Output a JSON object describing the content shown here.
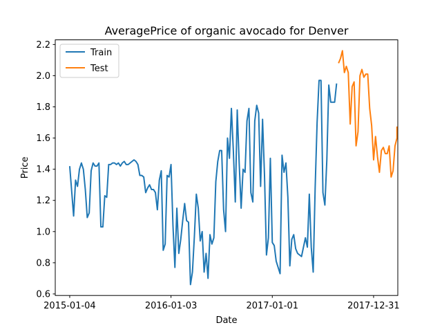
{
  "chart_data": {
    "type": "line",
    "title": "AveragePrice of organic avocado for Denver",
    "xlabel": "Date",
    "ylabel": "Price",
    "xlim": [
      "2014-11-13",
      "2018-03-28"
    ],
    "ylim": [
      0.59,
      2.23
    ],
    "grid": false,
    "legend_position": "top-left",
    "x_ticks": [
      "2015-01-04",
      "2016-01-03",
      "2017-01-01",
      "2017-12-31"
    ],
    "y_ticks": [
      0.6,
      0.8,
      1.0,
      1.2,
      1.4,
      1.6,
      1.8,
      2.0,
      2.2
    ],
    "y_tick_labels": [
      "0.6",
      "0.8",
      "1.0",
      "1.2",
      "1.4",
      "1.6",
      "1.8",
      "2.0",
      "2.2"
    ],
    "series": [
      {
        "name": "Train",
        "color": "#1f77b4",
        "points": [
          [
            "2015-01-04",
            1.42
          ],
          [
            "2015-01-11",
            1.26
          ],
          [
            "2015-01-18",
            1.1
          ],
          [
            "2015-01-25",
            1.33
          ],
          [
            "2015-02-01",
            1.29
          ],
          [
            "2015-02-08",
            1.4
          ],
          [
            "2015-02-15",
            1.44
          ],
          [
            "2015-02-22",
            1.4
          ],
          [
            "2015-03-01",
            1.27
          ],
          [
            "2015-03-08",
            1.09
          ],
          [
            "2015-03-15",
            1.12
          ],
          [
            "2015-03-22",
            1.39
          ],
          [
            "2015-03-29",
            1.44
          ],
          [
            "2015-04-05",
            1.42
          ],
          [
            "2015-04-12",
            1.42
          ],
          [
            "2015-04-19",
            1.44
          ],
          [
            "2015-04-26",
            1.03
          ],
          [
            "2015-05-03",
            1.03
          ],
          [
            "2015-05-10",
            1.23
          ],
          [
            "2015-05-17",
            1.22
          ],
          [
            "2015-05-24",
            1.43
          ],
          [
            "2015-05-31",
            1.43
          ],
          [
            "2015-06-07",
            1.44
          ],
          [
            "2015-06-14",
            1.44
          ],
          [
            "2015-06-21",
            1.43
          ],
          [
            "2015-06-28",
            1.44
          ],
          [
            "2015-07-05",
            1.42
          ],
          [
            "2015-07-12",
            1.44
          ],
          [
            "2015-07-19",
            1.45
          ],
          [
            "2015-07-26",
            1.43
          ],
          [
            "2015-08-02",
            1.43
          ],
          [
            "2015-08-09",
            1.44
          ],
          [
            "2015-08-16",
            1.45
          ],
          [
            "2015-08-23",
            1.46
          ],
          [
            "2015-08-30",
            1.45
          ],
          [
            "2015-09-06",
            1.43
          ],
          [
            "2015-09-13",
            1.36
          ],
          [
            "2015-09-20",
            1.36
          ],
          [
            "2015-09-27",
            1.35
          ],
          [
            "2015-10-04",
            1.25
          ],
          [
            "2015-10-11",
            1.28
          ],
          [
            "2015-10-18",
            1.3
          ],
          [
            "2015-10-25",
            1.27
          ],
          [
            "2015-11-01",
            1.27
          ],
          [
            "2015-11-08",
            1.25
          ],
          [
            "2015-11-15",
            1.14
          ],
          [
            "2015-11-22",
            1.33
          ],
          [
            "2015-11-29",
            1.39
          ],
          [
            "2015-12-06",
            0.88
          ],
          [
            "2015-12-13",
            0.92
          ],
          [
            "2015-12-20",
            1.36
          ],
          [
            "2015-12-27",
            1.35
          ],
          [
            "2016-01-03",
            1.43
          ],
          [
            "2016-01-10",
            1.04
          ],
          [
            "2016-01-17",
            0.77
          ],
          [
            "2016-01-24",
            1.15
          ],
          [
            "2016-01-31",
            0.86
          ],
          [
            "2016-02-07",
            0.95
          ],
          [
            "2016-02-14",
            1.07
          ],
          [
            "2016-02-21",
            1.18
          ],
          [
            "2016-02-28",
            1.07
          ],
          [
            "2016-03-06",
            1.06
          ],
          [
            "2016-03-13",
            0.66
          ],
          [
            "2016-03-20",
            0.74
          ],
          [
            "2016-03-27",
            0.97
          ],
          [
            "2016-04-03",
            1.24
          ],
          [
            "2016-04-10",
            1.15
          ],
          [
            "2016-04-17",
            0.94
          ],
          [
            "2016-04-24",
            1.0
          ],
          [
            "2016-05-01",
            0.74
          ],
          [
            "2016-05-08",
            0.86
          ],
          [
            "2016-05-15",
            0.7
          ],
          [
            "2016-05-22",
            0.98
          ],
          [
            "2016-05-29",
            0.92
          ],
          [
            "2016-06-05",
            0.96
          ],
          [
            "2016-06-12",
            1.32
          ],
          [
            "2016-06-19",
            1.45
          ],
          [
            "2016-06-26",
            1.52
          ],
          [
            "2016-07-03",
            1.52
          ],
          [
            "2016-07-10",
            1.14
          ],
          [
            "2016-07-17",
            1.0
          ],
          [
            "2016-07-24",
            1.6
          ],
          [
            "2016-07-31",
            1.47
          ],
          [
            "2016-08-07",
            1.79
          ],
          [
            "2016-08-14",
            1.52
          ],
          [
            "2016-08-21",
            1.19
          ],
          [
            "2016-08-28",
            1.78
          ],
          [
            "2016-09-04",
            1.44
          ],
          [
            "2016-09-11",
            1.15
          ],
          [
            "2016-09-18",
            1.4
          ],
          [
            "2016-09-25",
            1.38
          ],
          [
            "2016-10-02",
            1.71
          ],
          [
            "2016-10-09",
            1.79
          ],
          [
            "2016-10-16",
            1.25
          ],
          [
            "2016-10-23",
            1.19
          ],
          [
            "2016-10-30",
            1.71
          ],
          [
            "2016-11-06",
            1.81
          ],
          [
            "2016-11-13",
            1.76
          ],
          [
            "2016-11-20",
            1.29
          ],
          [
            "2016-11-27",
            1.72
          ],
          [
            "2016-12-04",
            1.36
          ],
          [
            "2016-12-11",
            0.85
          ],
          [
            "2016-12-18",
            0.96
          ],
          [
            "2016-12-25",
            1.47
          ],
          [
            "2017-01-01",
            0.93
          ],
          [
            "2017-01-08",
            0.91
          ],
          [
            "2017-01-15",
            0.81
          ],
          [
            "2017-01-22",
            0.77
          ],
          [
            "2017-01-29",
            0.73
          ],
          [
            "2017-02-05",
            1.49
          ],
          [
            "2017-02-12",
            1.38
          ],
          [
            "2017-02-19",
            1.44
          ],
          [
            "2017-02-26",
            1.22
          ],
          [
            "2017-03-05",
            0.78
          ],
          [
            "2017-03-12",
            0.95
          ],
          [
            "2017-03-19",
            0.98
          ],
          [
            "2017-03-26",
            0.89
          ],
          [
            "2017-04-02",
            0.86
          ],
          [
            "2017-04-09",
            0.85
          ],
          [
            "2017-04-16",
            0.84
          ],
          [
            "2017-04-23",
            0.9
          ],
          [
            "2017-04-30",
            0.96
          ],
          [
            "2017-05-07",
            0.9
          ],
          [
            "2017-05-14",
            1.24
          ],
          [
            "2017-05-21",
            0.9
          ],
          [
            "2017-05-28",
            0.74
          ],
          [
            "2017-06-04",
            1.28
          ],
          [
            "2017-06-11",
            1.7
          ],
          [
            "2017-06-18",
            1.97
          ],
          [
            "2017-06-25",
            1.97
          ],
          [
            "2017-07-02",
            1.25
          ],
          [
            "2017-07-09",
            1.17
          ],
          [
            "2017-07-16",
            1.46
          ],
          [
            "2017-07-23",
            1.94
          ],
          [
            "2017-07-30",
            1.83
          ],
          [
            "2017-08-06",
            1.83
          ],
          [
            "2017-08-13",
            1.83
          ],
          [
            "2017-08-20",
            1.95
          ]
        ]
      },
      {
        "name": "Test",
        "color": "#ff7f0e",
        "points": [
          [
            "2017-08-27",
            2.08
          ],
          [
            "2017-09-03",
            2.11
          ],
          [
            "2017-09-10",
            2.16
          ],
          [
            "2017-09-17",
            2.02
          ],
          [
            "2017-09-24",
            2.06
          ],
          [
            "2017-10-01",
            2.02
          ],
          [
            "2017-10-08",
            1.69
          ],
          [
            "2017-10-15",
            1.93
          ],
          [
            "2017-10-22",
            1.96
          ],
          [
            "2017-10-29",
            1.55
          ],
          [
            "2017-11-05",
            1.64
          ],
          [
            "2017-11-12",
            2.0
          ],
          [
            "2017-11-19",
            2.04
          ],
          [
            "2017-11-26",
            1.99
          ],
          [
            "2017-12-03",
            2.01
          ],
          [
            "2017-12-10",
            2.01
          ],
          [
            "2017-12-17",
            1.79
          ],
          [
            "2017-12-24",
            1.68
          ],
          [
            "2017-12-31",
            1.46
          ],
          [
            "2018-01-07",
            1.61
          ],
          [
            "2018-01-14",
            1.48
          ],
          [
            "2018-01-21",
            1.38
          ],
          [
            "2018-01-28",
            1.52
          ],
          [
            "2018-02-04",
            1.54
          ],
          [
            "2018-02-11",
            1.5
          ],
          [
            "2018-02-18",
            1.5
          ],
          [
            "2018-02-25",
            1.55
          ],
          [
            "2018-03-04",
            1.35
          ],
          [
            "2018-03-11",
            1.39
          ],
          [
            "2018-03-18",
            1.55
          ],
          [
            "2018-03-25",
            1.6
          ],
          [
            "2018-03-25",
            1.67
          ],
          [
            "2018-03-25",
            1.6
          ]
        ]
      }
    ]
  }
}
